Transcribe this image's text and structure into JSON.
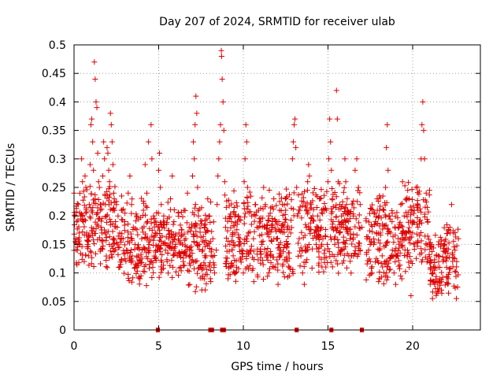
{
  "chart_data": {
    "type": "scatter",
    "title": "Day 207 of 2024, SRMTID for receiver ulab",
    "xlabel": "GPS time / hours",
    "ylabel": "SRMTID / TECUs",
    "xlim": [
      0,
      24
    ],
    "ylim": [
      0,
      0.5
    ],
    "x_ticks": [
      0,
      5,
      10,
      15,
      20
    ],
    "x_tick_labels": [
      "0",
      "5",
      "10",
      "15",
      "20"
    ],
    "y_ticks": [
      0,
      0.05,
      0.1,
      0.15,
      0.2,
      0.25,
      0.3,
      0.35,
      0.4,
      0.45,
      0.5
    ],
    "y_tick_labels": [
      "0",
      "0.05",
      "0.1",
      "0.15",
      "0.2",
      "0.25",
      "0.3",
      "0.35",
      "0.4",
      "0.45",
      "0.5"
    ],
    "grid": true,
    "grid_style": "dotted",
    "marker": "plus",
    "color": "#e00000",
    "series": [
      {
        "name": "SRMTID",
        "points": [
          [
            0.0,
            0.24
          ],
          [
            0.05,
            0.2
          ],
          [
            0.1,
            0.16
          ],
          [
            0.15,
            0.19
          ],
          [
            0.2,
            0.14
          ],
          [
            0.25,
            0.22
          ],
          [
            0.3,
            0.17
          ],
          [
            0.35,
            0.15
          ],
          [
            0.4,
            0.2
          ],
          [
            0.45,
            0.3
          ],
          [
            0.5,
            0.26
          ],
          [
            0.55,
            0.19
          ],
          [
            0.6,
            0.12
          ],
          [
            0.65,
            0.27
          ],
          [
            0.7,
            0.25
          ],
          [
            0.75,
            0.17
          ],
          [
            0.8,
            0.15
          ],
          [
            0.85,
            0.13
          ],
          [
            0.9,
            0.22
          ],
          [
            0.95,
            0.29
          ],
          [
            1.0,
            0.36
          ],
          [
            1.05,
            0.37
          ],
          [
            1.1,
            0.33
          ],
          [
            1.15,
            0.28
          ],
          [
            1.2,
            0.47
          ],
          [
            1.25,
            0.44
          ],
          [
            1.3,
            0.4
          ],
          [
            1.35,
            0.39
          ],
          [
            1.4,
            0.31
          ],
          [
            1.45,
            0.26
          ],
          [
            1.5,
            0.25
          ],
          [
            1.55,
            0.21
          ],
          [
            1.6,
            0.18
          ],
          [
            1.65,
            0.17
          ],
          [
            1.7,
            0.27
          ],
          [
            1.75,
            0.33
          ],
          [
            1.8,
            0.3
          ],
          [
            1.85,
            0.22
          ],
          [
            1.9,
            0.2
          ],
          [
            1.95,
            0.32
          ],
          [
            2.0,
            0.31
          ],
          [
            2.05,
            0.28
          ],
          [
            2.1,
            0.26
          ],
          [
            2.15,
            0.38
          ],
          [
            2.2,
            0.36
          ],
          [
            2.25,
            0.33
          ],
          [
            2.3,
            0.29
          ],
          [
            2.35,
            0.24
          ],
          [
            2.4,
            0.21
          ],
          [
            2.45,
            0.19
          ],
          [
            2.5,
            0.22
          ],
          [
            2.55,
            0.18
          ],
          [
            2.6,
            0.2
          ],
          [
            2.7,
            0.17
          ],
          [
            2.8,
            0.21
          ],
          [
            2.9,
            0.16
          ],
          [
            3.0,
            0.19
          ],
          [
            3.1,
            0.14
          ],
          [
            3.2,
            0.24
          ],
          [
            3.3,
            0.27
          ],
          [
            3.4,
            0.22
          ],
          [
            3.5,
            0.18
          ],
          [
            3.6,
            0.15
          ],
          [
            3.7,
            0.2
          ],
          [
            3.8,
            0.13
          ],
          [
            3.9,
            0.09
          ],
          [
            4.0,
            0.16
          ],
          [
            4.1,
            0.21
          ],
          [
            4.2,
            0.29
          ],
          [
            4.3,
            0.24
          ],
          [
            4.35,
            0.19
          ],
          [
            4.4,
            0.33
          ],
          [
            4.45,
            0.15
          ],
          [
            4.5,
            0.12
          ],
          [
            4.55,
            0.36
          ],
          [
            4.6,
            0.3
          ],
          [
            4.65,
            0.11
          ],
          [
            4.7,
            0.2
          ],
          [
            4.8,
            0.17
          ],
          [
            4.9,
            0.14
          ],
          [
            5.0,
            0.28
          ],
          [
            5.05,
            0.31
          ],
          [
            5.1,
            0.25
          ],
          [
            5.15,
            0.22
          ],
          [
            5.2,
            0.18
          ],
          [
            5.3,
            0.2
          ],
          [
            5.4,
            0.14
          ],
          [
            5.5,
            0.12
          ],
          [
            5.6,
            0.16
          ],
          [
            5.7,
            0.23
          ],
          [
            5.8,
            0.27
          ],
          [
            5.9,
            0.19
          ],
          [
            6.0,
            0.15
          ],
          [
            6.1,
            0.13
          ],
          [
            6.2,
            0.17
          ],
          [
            6.3,
            0.11
          ],
          [
            6.4,
            0.15
          ],
          [
            6.5,
            0.21
          ],
          [
            6.6,
            0.16
          ],
          [
            6.7,
            0.24
          ],
          [
            6.8,
            0.18
          ],
          [
            6.9,
            0.14
          ],
          [
            7.0,
            0.27
          ],
          [
            7.05,
            0.33
          ],
          [
            7.1,
            0.3
          ],
          [
            7.15,
            0.36
          ],
          [
            7.2,
            0.41
          ],
          [
            7.25,
            0.38
          ],
          [
            7.3,
            0.25
          ],
          [
            7.35,
            0.2
          ],
          [
            7.4,
            0.15
          ],
          [
            7.5,
            0.11
          ],
          [
            7.6,
            0.14
          ],
          [
            7.7,
            0.18
          ],
          [
            7.8,
            0.13
          ],
          [
            7.9,
            0.23
          ],
          [
            8.0,
            0.2
          ],
          [
            8.05,
            0.09
          ],
          [
            8.1,
            0.13
          ],
          [
            8.2,
            0.16
          ],
          [
            8.3,
            0.1
          ],
          [
            8.4,
            0.14
          ],
          [
            8.45,
            0.22
          ],
          [
            8.5,
            0.27
          ],
          [
            8.55,
            0.3
          ],
          [
            8.6,
            0.33
          ],
          [
            8.65,
            0.36
          ],
          [
            8.7,
            0.49
          ],
          [
            8.72,
            0.48
          ],
          [
            8.75,
            0.44
          ],
          [
            8.8,
            0.4
          ],
          [
            8.85,
            0.35
          ],
          [
            8.9,
            0.26
          ],
          [
            8.95,
            0.18
          ],
          [
            9.0,
            0.12
          ],
          [
            9.1,
            0.09
          ],
          [
            9.2,
            0.15
          ],
          [
            9.3,
            0.19
          ],
          [
            9.4,
            0.13
          ],
          [
            9.5,
            0.17
          ],
          [
            9.6,
            0.11
          ],
          [
            9.7,
            0.2
          ],
          [
            9.8,
            0.16
          ],
          [
            9.9,
            0.14
          ],
          [
            10.0,
            0.1
          ],
          [
            10.05,
            0.26
          ],
          [
            10.1,
            0.3
          ],
          [
            10.15,
            0.36
          ],
          [
            10.2,
            0.33
          ],
          [
            10.25,
            0.25
          ],
          [
            10.3,
            0.17
          ],
          [
            10.4,
            0.14
          ],
          [
            10.5,
            0.2
          ],
          [
            10.6,
            0.16
          ],
          [
            10.7,
            0.22
          ],
          [
            10.8,
            0.18
          ],
          [
            10.9,
            0.21
          ],
          [
            11.0,
            0.19
          ],
          [
            11.1,
            0.15
          ],
          [
            11.2,
            0.25
          ],
          [
            11.3,
            0.22
          ],
          [
            11.4,
            0.17
          ],
          [
            11.5,
            0.2
          ],
          [
            11.6,
            0.13
          ],
          [
            11.7,
            0.18
          ],
          [
            11.8,
            0.23
          ],
          [
            11.9,
            0.11
          ],
          [
            12.0,
            0.16
          ],
          [
            12.05,
            0.08
          ],
          [
            12.1,
            0.19
          ],
          [
            12.2,
            0.14
          ],
          [
            12.3,
            0.22
          ],
          [
            12.4,
            0.18
          ],
          [
            12.5,
            0.21
          ],
          [
            12.6,
            0.15
          ],
          [
            12.7,
            0.11
          ],
          [
            12.8,
            0.17
          ],
          [
            12.9,
            0.3
          ],
          [
            12.95,
            0.33
          ],
          [
            13.0,
            0.36
          ],
          [
            13.05,
            0.37
          ],
          [
            13.1,
            0.32
          ],
          [
            13.15,
            0.25
          ],
          [
            13.2,
            0.2
          ],
          [
            13.3,
            0.16
          ],
          [
            13.4,
            0.13
          ],
          [
            13.5,
            0.1
          ],
          [
            13.6,
            0.08
          ],
          [
            13.7,
            0.14
          ],
          [
            13.8,
            0.26
          ],
          [
            13.85,
            0.29
          ],
          [
            13.9,
            0.27
          ],
          [
            14.0,
            0.22
          ],
          [
            14.1,
            0.2
          ],
          [
            14.2,
            0.17
          ],
          [
            14.3,
            0.15
          ],
          [
            14.4,
            0.2
          ],
          [
            14.5,
            0.23
          ],
          [
            14.6,
            0.18
          ],
          [
            14.7,
            0.16
          ],
          [
            14.8,
            0.14
          ],
          [
            14.9,
            0.21
          ],
          [
            15.0,
            0.26
          ],
          [
            15.05,
            0.3
          ],
          [
            15.1,
            0.37
          ],
          [
            15.15,
            0.33
          ],
          [
            15.2,
            0.28
          ],
          [
            15.25,
            0.23
          ],
          [
            15.3,
            0.19
          ],
          [
            15.4,
            0.15
          ],
          [
            15.5,
            0.42
          ],
          [
            15.55,
            0.37
          ],
          [
            15.6,
            0.26
          ],
          [
            15.7,
            0.22
          ],
          [
            15.8,
            0.2
          ],
          [
            15.9,
            0.18
          ],
          [
            16.0,
            0.3
          ],
          [
            16.05,
            0.26
          ],
          [
            16.1,
            0.22
          ],
          [
            16.2,
            0.19
          ],
          [
            16.3,
            0.16
          ],
          [
            16.4,
            0.13
          ],
          [
            16.5,
            0.2
          ],
          [
            16.6,
            0.28
          ],
          [
            16.7,
            0.3
          ],
          [
            16.8,
            0.25
          ],
          [
            16.9,
            0.22
          ],
          [
            17.0,
            0.18
          ],
          [
            17.3,
            0.16
          ],
          [
            17.4,
            0.14
          ],
          [
            17.5,
            0.12
          ],
          [
            17.6,
            0.1
          ],
          [
            17.7,
            0.15
          ],
          [
            17.8,
            0.19
          ],
          [
            17.9,
            0.23
          ],
          [
            18.0,
            0.2
          ],
          [
            18.1,
            0.17
          ],
          [
            18.2,
            0.13
          ],
          [
            18.3,
            0.21
          ],
          [
            18.4,
            0.25
          ],
          [
            18.45,
            0.32
          ],
          [
            18.5,
            0.36
          ],
          [
            18.55,
            0.28
          ],
          [
            18.6,
            0.2
          ],
          [
            18.7,
            0.17
          ],
          [
            18.8,
            0.14
          ],
          [
            18.9,
            0.1
          ],
          [
            19.0,
            0.08
          ],
          [
            19.1,
            0.13
          ],
          [
            19.2,
            0.18
          ],
          [
            19.3,
            0.22
          ],
          [
            19.4,
            0.26
          ],
          [
            19.5,
            0.2
          ],
          [
            19.6,
            0.16
          ],
          [
            19.7,
            0.14
          ],
          [
            19.8,
            0.11
          ],
          [
            19.9,
            0.06
          ],
          [
            20.0,
            0.17
          ],
          [
            20.1,
            0.21
          ],
          [
            20.2,
            0.25
          ],
          [
            20.3,
            0.22
          ],
          [
            20.4,
            0.19
          ],
          [
            20.5,
            0.3
          ],
          [
            20.55,
            0.36
          ],
          [
            20.6,
            0.4
          ],
          [
            20.65,
            0.35
          ],
          [
            20.7,
            0.3
          ],
          [
            20.8,
            0.24
          ],
          [
            20.9,
            0.19
          ],
          [
            21.0,
            0.15
          ],
          [
            21.1,
            0.12
          ],
          [
            21.2,
            0.1
          ],
          [
            21.3,
            0.08
          ],
          [
            21.4,
            0.13
          ],
          [
            21.5,
            0.11
          ],
          [
            21.6,
            0.09
          ],
          [
            21.7,
            0.07
          ],
          [
            21.8,
            0.12
          ],
          [
            21.9,
            0.15
          ],
          [
            22.0,
            0.11
          ],
          [
            22.1,
            0.09
          ],
          [
            22.2,
            0.18
          ],
          [
            22.3,
            0.22
          ],
          [
            22.4,
            0.17
          ],
          [
            22.5,
            0.14
          ],
          [
            22.6,
            0.12
          ],
          [
            22.7,
            0.16
          ]
        ],
        "cluster_fill": {
          "description": "dense point cloud across the observation window",
          "ranges": [
            [
              0.0,
              2.6,
              0.12,
              0.24
            ],
            [
              2.6,
              4.9,
              0.1,
              0.22
            ],
            [
              4.9,
              6.6,
              0.11,
              0.2
            ],
            [
              6.6,
              8.3,
              0.09,
              0.21
            ],
            [
              8.9,
              13.0,
              0.1,
              0.23
            ],
            [
              13.2,
              16.9,
              0.12,
              0.24
            ],
            [
              17.2,
              19.5,
              0.1,
              0.22
            ],
            [
              19.5,
              21.0,
              0.12,
              0.24
            ],
            [
              21.0,
              22.7,
              0.07,
              0.17
            ]
          ]
        }
      }
    ],
    "zero_line_markers": [
      4.95,
      8.05,
      8.15,
      8.75,
      8.85,
      13.15,
      15.2,
      17.0
    ]
  }
}
